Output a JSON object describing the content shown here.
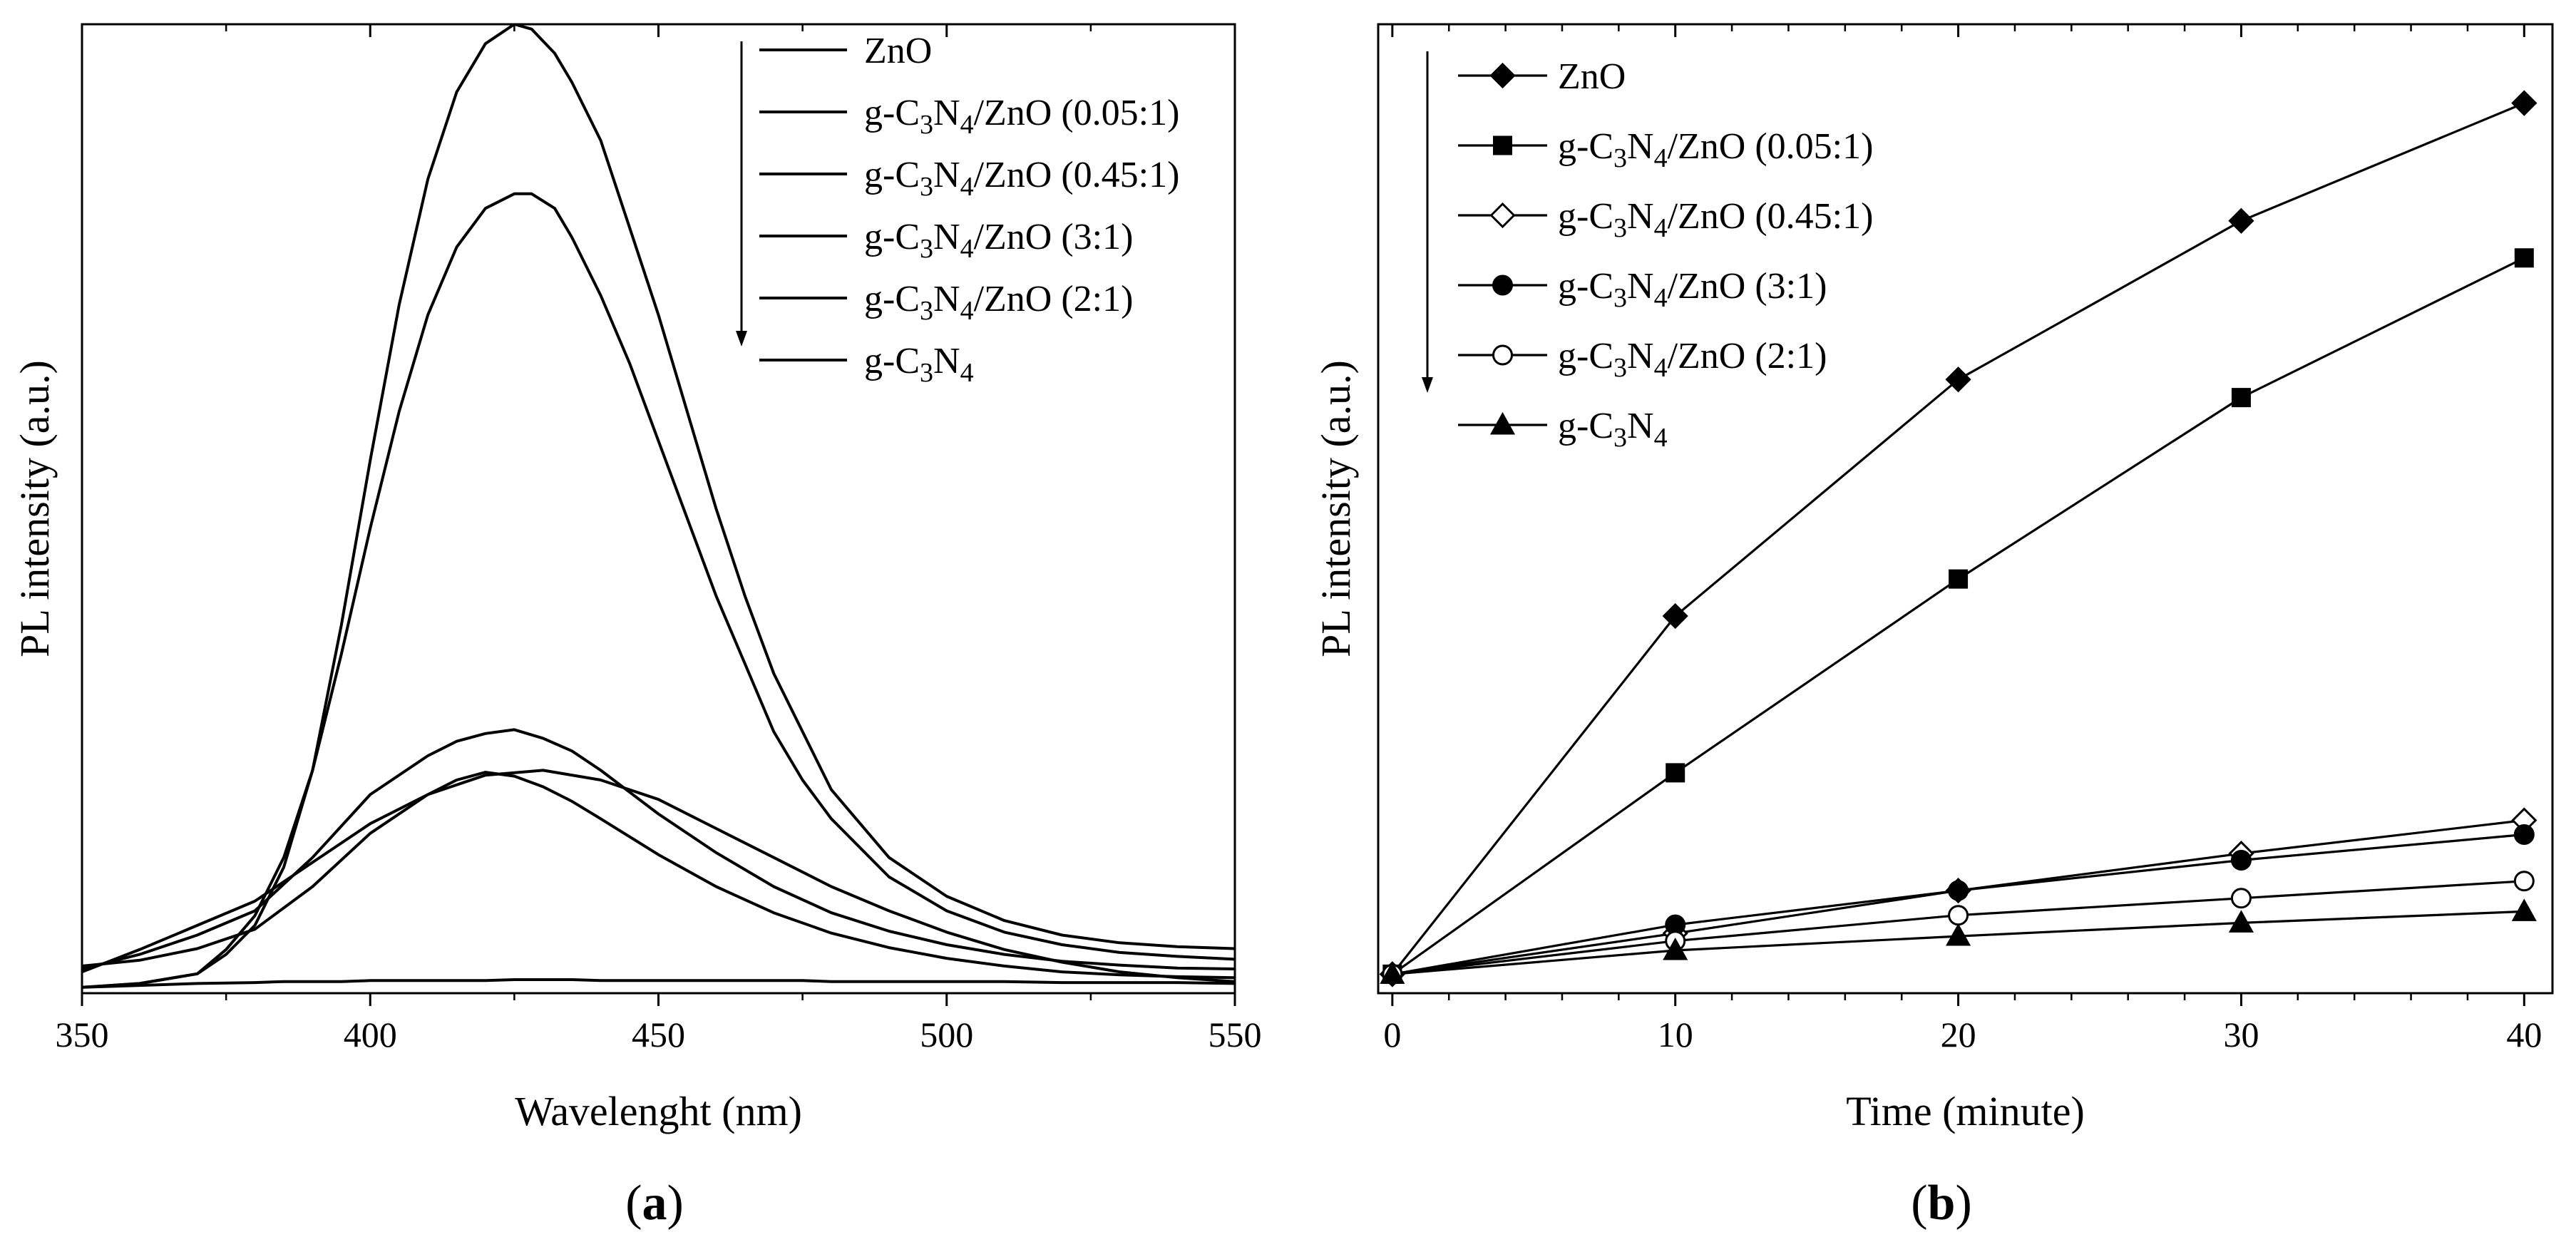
{
  "chart_data": [
    {
      "panel": "a",
      "panel_label": "a",
      "type": "line",
      "xlabel": "Wavelenght (nm)",
      "ylabel": "PL intensity (a.u.)",
      "xlim": [
        350,
        550
      ],
      "ylim": [
        0,
        100
      ],
      "x_ticks": [
        350,
        400,
        450,
        500,
        550
      ],
      "y_ticks_shown": false,
      "legend_order_arrow": "down",
      "series": [
        {
          "name": "ZnO",
          "name_parts": [
            [
              "ZnO",
              ""
            ]
          ],
          "x": [
            350,
            360,
            370,
            380,
            385,
            390,
            395,
            400,
            405,
            410,
            415,
            420,
            425,
            428,
            432,
            435,
            440,
            445,
            450,
            455,
            460,
            465,
            470,
            475,
            480,
            490,
            500,
            510,
            520,
            530,
            540,
            550
          ],
          "y": [
            0.6,
            0.8,
            1.0,
            1.1,
            1.2,
            1.2,
            1.2,
            1.3,
            1.3,
            1.3,
            1.3,
            1.3,
            1.4,
            1.4,
            1.4,
            1.4,
            1.3,
            1.3,
            1.3,
            1.3,
            1.3,
            1.3,
            1.3,
            1.3,
            1.2,
            1.2,
            1.2,
            1.2,
            1.1,
            1.1,
            1.1,
            1.0
          ]
        },
        {
          "name": "g-C3N4/ZnO (0.05:1)",
          "name_parts": [
            [
              "g-C",
              ""
            ],
            [
              "3",
              "sub"
            ],
            [
              "N",
              ""
            ],
            [
              "4",
              "sub"
            ],
            [
              "/ZnO (0.05:1)",
              ""
            ]
          ],
          "x": [
            350,
            360,
            370,
            375,
            380,
            385,
            390,
            395,
            400,
            405,
            410,
            415,
            420,
            425,
            428,
            432,
            435,
            440,
            445,
            450,
            455,
            460,
            465,
            470,
            475,
            480,
            490,
            500,
            510,
            520,
            530,
            540,
            550
          ],
          "y": [
            0.6,
            1.0,
            2.0,
            4.0,
            7.0,
            13.0,
            23.0,
            38.0,
            55.0,
            71.0,
            84.0,
            93.0,
            98.0,
            100.0,
            99.5,
            97.0,
            94.0,
            88.0,
            79.0,
            70.0,
            60.0,
            50.0,
            41.0,
            33.0,
            27.0,
            21.0,
            14.0,
            10.0,
            7.5,
            6.0,
            5.2,
            4.8,
            4.6
          ]
        },
        {
          "name": "g-C3N4/ZnO (0.45:1)",
          "name_parts": [
            [
              "g-C",
              ""
            ],
            [
              "3",
              "sub"
            ],
            [
              "N",
              ""
            ],
            [
              "4",
              "sub"
            ],
            [
              "/ZnO (0.45:1)",
              ""
            ]
          ],
          "x": [
            350,
            360,
            370,
            375,
            380,
            385,
            390,
            395,
            400,
            405,
            410,
            415,
            420,
            425,
            428,
            432,
            435,
            440,
            445,
            450,
            455,
            460,
            465,
            470,
            475,
            480,
            490,
            500,
            510,
            520,
            530,
            540,
            550
          ],
          "y": [
            0.6,
            1.0,
            2.0,
            4.5,
            8.0,
            14.0,
            23.0,
            35.0,
            48.0,
            60.0,
            70.0,
            77.0,
            81.0,
            82.5,
            82.5,
            81.0,
            78.0,
            72.0,
            65.0,
            57.0,
            49.0,
            41.0,
            34.0,
            27.0,
            22.0,
            18.0,
            12.0,
            8.5,
            6.3,
            5.0,
            4.2,
            3.8,
            3.5
          ]
        },
        {
          "name": "g-C3N4/ZnO (3:1)",
          "name_parts": [
            [
              "g-C",
              ""
            ],
            [
              "3",
              "sub"
            ],
            [
              "N",
              ""
            ],
            [
              "4",
              "sub"
            ],
            [
              "/ZnO (3:1)",
              ""
            ]
          ],
          "x": [
            350,
            360,
            370,
            380,
            390,
            400,
            410,
            415,
            420,
            425,
            430,
            435,
            440,
            450,
            460,
            470,
            480,
            490,
            500,
            510,
            520,
            530,
            540,
            550
          ],
          "y": [
            2.5,
            4.0,
            6.0,
            8.5,
            14.0,
            20.5,
            24.5,
            26.0,
            26.8,
            27.2,
            26.3,
            25.0,
            23.0,
            18.5,
            14.5,
            11.0,
            8.3,
            6.4,
            5.0,
            4.0,
            3.3,
            2.9,
            2.6,
            2.5
          ]
        },
        {
          "name": "g-C3N4/ZnO (2:1)",
          "name_parts": [
            [
              "g-C",
              ""
            ],
            [
              "3",
              "sub"
            ],
            [
              "N",
              ""
            ],
            [
              "4",
              "sub"
            ],
            [
              "/ZnO (2:1)",
              ""
            ]
          ],
          "x": [
            350,
            360,
            370,
            380,
            390,
            400,
            410,
            415,
            420,
            425,
            430,
            435,
            440,
            450,
            460,
            470,
            480,
            490,
            500,
            510,
            520,
            530,
            540,
            550
          ],
          "y": [
            2.8,
            3.4,
            4.6,
            6.6,
            11.0,
            16.5,
            20.5,
            22.0,
            22.8,
            22.4,
            21.3,
            19.8,
            18.0,
            14.3,
            11.0,
            8.3,
            6.2,
            4.7,
            3.6,
            2.8,
            2.2,
            1.9,
            1.7,
            1.6
          ]
        },
        {
          "name": "g-C3N4",
          "name_parts": [
            [
              "g-C",
              ""
            ],
            [
              "3",
              "sub"
            ],
            [
              "N",
              ""
            ],
            [
              "4",
              "sub"
            ]
          ],
          "x": [
            350,
            360,
            370,
            380,
            390,
            400,
            410,
            420,
            430,
            440,
            450,
            460,
            470,
            480,
            490,
            500,
            510,
            520,
            530,
            540,
            550
          ],
          "y": [
            2.2,
            4.5,
            7.0,
            9.5,
            13.5,
            17.5,
            20.5,
            22.5,
            23.0,
            22.0,
            20.0,
            17.0,
            14.0,
            11.0,
            8.5,
            6.3,
            4.5,
            3.2,
            2.2,
            1.6,
            1.2
          ]
        }
      ]
    },
    {
      "panel": "b",
      "panel_label": "b",
      "type": "line",
      "xlabel": "Time (minute)",
      "ylabel": "PL intensity (a.u.)",
      "xlim": [
        -0.5,
        41
      ],
      "ylim": [
        -2,
        100
      ],
      "x_ticks": [
        0,
        10,
        20,
        30,
        40
      ],
      "y_ticks_shown": false,
      "legend_order_arrow": "down",
      "series": [
        {
          "name": "ZnO",
          "name_parts": [
            [
              "ZnO",
              ""
            ]
          ],
          "marker": "diamond-filled",
          "x": [
            0,
            10,
            20,
            30,
            40
          ],
          "y": [
            0,
            37.7,
            62.6,
            79.3,
            91.7
          ]
        },
        {
          "name": "g-C3N4/ZnO (0.05:1)",
          "name_parts": [
            [
              "g-C",
              ""
            ],
            [
              "3",
              "sub"
            ],
            [
              "N",
              ""
            ],
            [
              "4",
              "sub"
            ],
            [
              "/ZnO (0.05:1)",
              ""
            ]
          ],
          "marker": "square-filled",
          "x": [
            0,
            10,
            20,
            30,
            40
          ],
          "y": [
            0,
            21.2,
            41.6,
            60.7,
            75.4
          ]
        },
        {
          "name": "g-C3N4/ZnO (0.45:1)",
          "name_parts": [
            [
              "g-C",
              ""
            ],
            [
              "3",
              "sub"
            ],
            [
              "N",
              ""
            ],
            [
              "4",
              "sub"
            ],
            [
              "/ZnO (0.45:1)",
              ""
            ]
          ],
          "marker": "diamond-open",
          "x": [
            0,
            10,
            20,
            30,
            40
          ],
          "y": [
            0,
            4.3,
            8.8,
            12.7,
            16.2
          ]
        },
        {
          "name": "g-C3N4/ZnO (3:1)",
          "name_parts": [
            [
              "g-C",
              ""
            ],
            [
              "3",
              "sub"
            ],
            [
              "N",
              ""
            ],
            [
              "4",
              "sub"
            ],
            [
              "/ZnO (3:1)",
              ""
            ]
          ],
          "marker": "circle-filled",
          "x": [
            0,
            10,
            20,
            30,
            40
          ],
          "y": [
            0,
            5.2,
            8.8,
            12.0,
            14.7
          ]
        },
        {
          "name": "g-C3N4/ZnO (2:1)",
          "name_parts": [
            [
              "g-C",
              ""
            ],
            [
              "3",
              "sub"
            ],
            [
              "N",
              ""
            ],
            [
              "4",
              "sub"
            ],
            [
              "/ZnO (2:1)",
              ""
            ]
          ],
          "marker": "circle-open",
          "x": [
            0,
            10,
            20,
            30,
            40
          ],
          "y": [
            0,
            3.5,
            6.2,
            8.0,
            9.8
          ]
        },
        {
          "name": "g-C3N4",
          "name_parts": [
            [
              "g-C",
              ""
            ],
            [
              "3",
              "sub"
            ],
            [
              "N",
              ""
            ],
            [
              "4",
              "sub"
            ]
          ],
          "marker": "triangle-filled",
          "x": [
            0,
            10,
            20,
            30,
            40
          ],
          "y": [
            0,
            2.5,
            4.0,
            5.4,
            6.6
          ]
        }
      ]
    }
  ]
}
